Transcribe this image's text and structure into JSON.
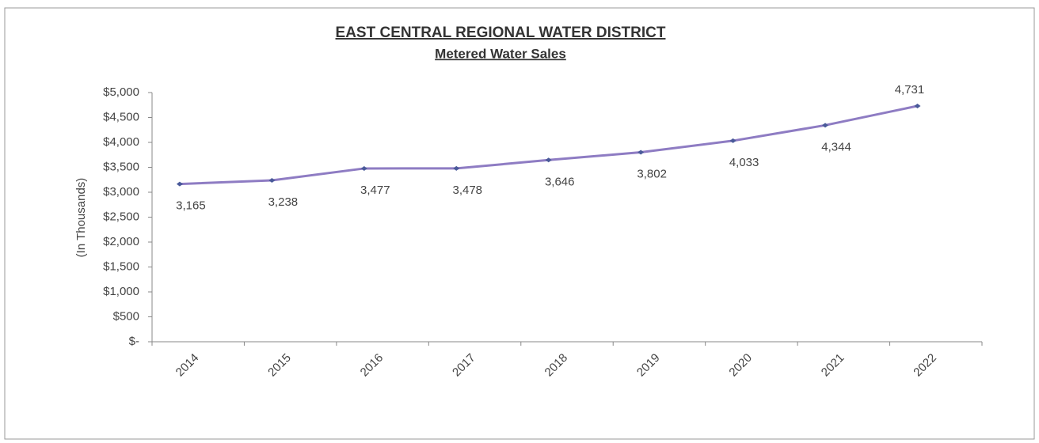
{
  "chart_data": {
    "type": "line",
    "title": "EAST CENTRAL REGIONAL WATER DISTRICT",
    "subtitle": "Metered Water Sales",
    "y_label": "(In Thousands)",
    "categories": [
      "2014",
      "2015",
      "2016",
      "2017",
      "2018",
      "2019",
      "2020",
      "2021",
      "2022"
    ],
    "series": [
      {
        "name": "Metered Water Sales",
        "color": "#8e7cc3",
        "marker_color": "#4a5a9a",
        "values": [
          3165,
          3238,
          3477,
          3478,
          3646,
          3802,
          4033,
          4344,
          4731
        ],
        "value_labels": [
          "3,165",
          "3,238",
          "3,477",
          "3,478",
          "3,646",
          "3,802",
          "4,033",
          "4,344",
          "4,731"
        ]
      }
    ],
    "ylim": [
      0,
      5000
    ],
    "yticks": [
      {
        "value": 0,
        "label": "$-"
      },
      {
        "value": 500,
        "label": "$500"
      },
      {
        "value": 1000,
        "label": "$1,000"
      },
      {
        "value": 1500,
        "label": "$1,500"
      },
      {
        "value": 2000,
        "label": "$2,000"
      },
      {
        "value": 2500,
        "label": "$2,500"
      },
      {
        "value": 3000,
        "label": "$3,000"
      },
      {
        "value": 3500,
        "label": "$3,500"
      },
      {
        "value": 4000,
        "label": "$4,000"
      },
      {
        "value": 4500,
        "label": "$4,500"
      },
      {
        "value": 5000,
        "label": "$5,000"
      }
    ],
    "grid": false
  }
}
